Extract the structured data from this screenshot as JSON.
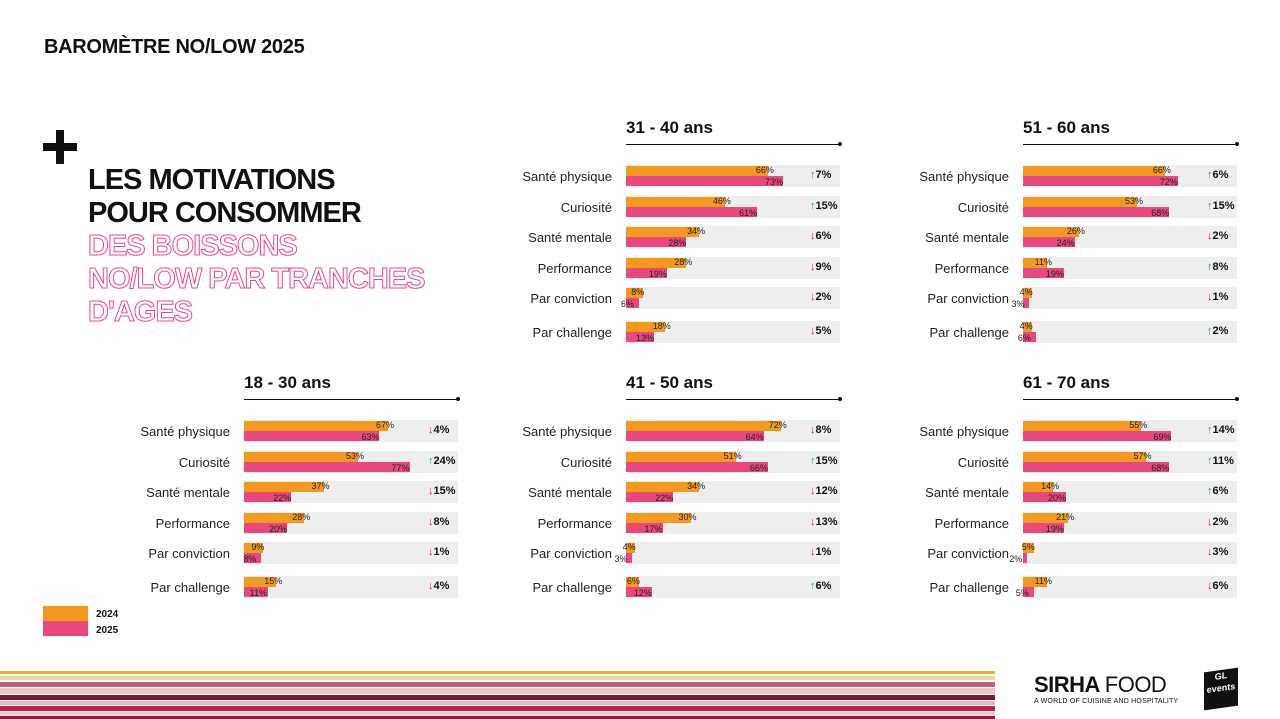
{
  "header": {
    "title": "BAROMÈTRE NO/LOW 2025"
  },
  "headline": {
    "lines_dark": [
      "LES MOTIVATIONS",
      "POUR CONSOMMER"
    ],
    "lines_outline": [
      "DES BOISSONS",
      "NO/LOW PAR TRANCHES",
      "D'AGES"
    ]
  },
  "colors": {
    "y2024": "#f39a1e",
    "y2025": "#e8487d",
    "up": "#1aa37a",
    "down": "#d9241f",
    "row_bg": "#eeeeee"
  },
  "legend": {
    "items": [
      "2024",
      "2025"
    ]
  },
  "chart_data": [
    {
      "type": "bar",
      "title": "31 - 40 ans",
      "categories": [
        "Santé physique",
        "Curiosité",
        "Santé mentale",
        "Performance",
        "Par conviction",
        "Par challenge"
      ],
      "series": [
        {
          "name": "2024",
          "values": [
            66,
            46,
            34,
            28,
            8,
            18
          ]
        },
        {
          "name": "2025",
          "values": [
            73,
            61,
            28,
            19,
            6,
            13
          ]
        }
      ],
      "deltas": [
        "7%",
        "15%",
        "6%",
        "9%",
        "2%",
        "5%"
      ],
      "directions": [
        "up",
        "up",
        "down",
        "down",
        "down",
        "down"
      ]
    },
    {
      "type": "bar",
      "title": "51 - 60 ans",
      "categories": [
        "Santé physique",
        "Curiosité",
        "Santé mentale",
        "Performance",
        "Par conviction",
        "Par challenge"
      ],
      "series": [
        {
          "name": "2024",
          "values": [
            66,
            53,
            26,
            11,
            4,
            4
          ]
        },
        {
          "name": "2025",
          "values": [
            72,
            68,
            24,
            19,
            3,
            6
          ]
        }
      ],
      "deltas": [
        "6%",
        "15%",
        "2%",
        "8%",
        "1%",
        "2%"
      ],
      "directions": [
        "up",
        "up",
        "down",
        "up",
        "down",
        "up"
      ]
    },
    {
      "type": "bar",
      "title": "18 - 30 ans",
      "categories": [
        "Santé physique",
        "Curiosité",
        "Santé mentale",
        "Performance",
        "Par conviction",
        "Par challenge"
      ],
      "series": [
        {
          "name": "2024",
          "values": [
            67,
            53,
            37,
            28,
            9,
            15
          ]
        },
        {
          "name": "2025",
          "values": [
            63,
            77,
            22,
            20,
            8,
            11
          ]
        }
      ],
      "deltas": [
        "4%",
        "24%",
        "15%",
        "8%",
        "1%",
        "4%"
      ],
      "directions": [
        "down",
        "up",
        "down",
        "down",
        "down",
        "down"
      ]
    },
    {
      "type": "bar",
      "title": "41 - 50 ans",
      "categories": [
        "Santé physique",
        "Curiosité",
        "Santé mentale",
        "Performance",
        "Par conviction",
        "Par challenge"
      ],
      "series": [
        {
          "name": "2024",
          "values": [
            72,
            51,
            34,
            30,
            4,
            6
          ]
        },
        {
          "name": "2025",
          "values": [
            64,
            66,
            22,
            17,
            3,
            12
          ]
        }
      ],
      "deltas": [
        "8%",
        "15%",
        "12%",
        "13%",
        "1%",
        "6%"
      ],
      "directions": [
        "down",
        "up",
        "down",
        "down",
        "down",
        "up"
      ]
    },
    {
      "type": "bar",
      "title": "61 - 70 ans",
      "categories": [
        "Santé physique",
        "Curiosité",
        "Santé mentale",
        "Performance",
        "Par conviction",
        "Par challenge"
      ],
      "series": [
        {
          "name": "2024",
          "values": [
            55,
            57,
            14,
            21,
            5,
            11
          ]
        },
        {
          "name": "2025",
          "values": [
            69,
            68,
            20,
            19,
            2,
            5
          ]
        }
      ],
      "deltas": [
        "14%",
        "11%",
        "6%",
        "2%",
        "3%",
        "6%"
      ],
      "directions": [
        "up",
        "up",
        "up",
        "down",
        "down",
        "down"
      ]
    }
  ],
  "footer": {
    "brand": "SIRHA",
    "brand_product": "FOOD",
    "tagline": "A WORLD OF CUISINE AND HOSPITALITY",
    "partner": "GL events"
  }
}
